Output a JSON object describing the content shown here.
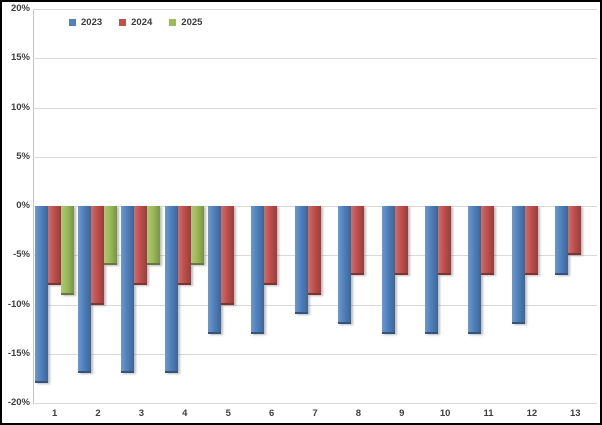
{
  "chart_data": {
    "type": "bar",
    "title": "",
    "xlabel": "",
    "ylabel": "",
    "categories": [
      "1",
      "2",
      "3",
      "4",
      "5",
      "6",
      "7",
      "8",
      "9",
      "10",
      "11",
      "12",
      "13"
    ],
    "series": [
      {
        "name": "2023",
        "color": "#4F81BD",
        "values": [
          -18,
          -17,
          -17,
          -17,
          -13,
          -13,
          -11,
          -12,
          -13,
          -13,
          -13,
          -12,
          -7
        ]
      },
      {
        "name": "2024",
        "color": "#C0504D",
        "values": [
          -8,
          -10,
          -8,
          -8,
          -10,
          -8,
          -9,
          -7,
          -7,
          -7,
          -7,
          -7,
          -5
        ]
      },
      {
        "name": "2025",
        "color": "#9BBB59",
        "values": [
          -9,
          -6,
          -6,
          -6,
          null,
          null,
          null,
          null,
          null,
          null,
          null,
          null,
          null
        ]
      }
    ],
    "ylim": [
      -20,
      20
    ],
    "ytick_step": 5,
    "ytick_labels": [
      "20%",
      "15%",
      "10%",
      "5%",
      "0%",
      "-5%",
      "-10%",
      "-15%",
      "-20%"
    ],
    "grid": true,
    "legend_position": "top-left",
    "gridline_color": "#D9D9D9",
    "axis_text_color": "#3F3F3F",
    "background_color": "#FFFFFF",
    "frame_border_color": "#000000"
  }
}
